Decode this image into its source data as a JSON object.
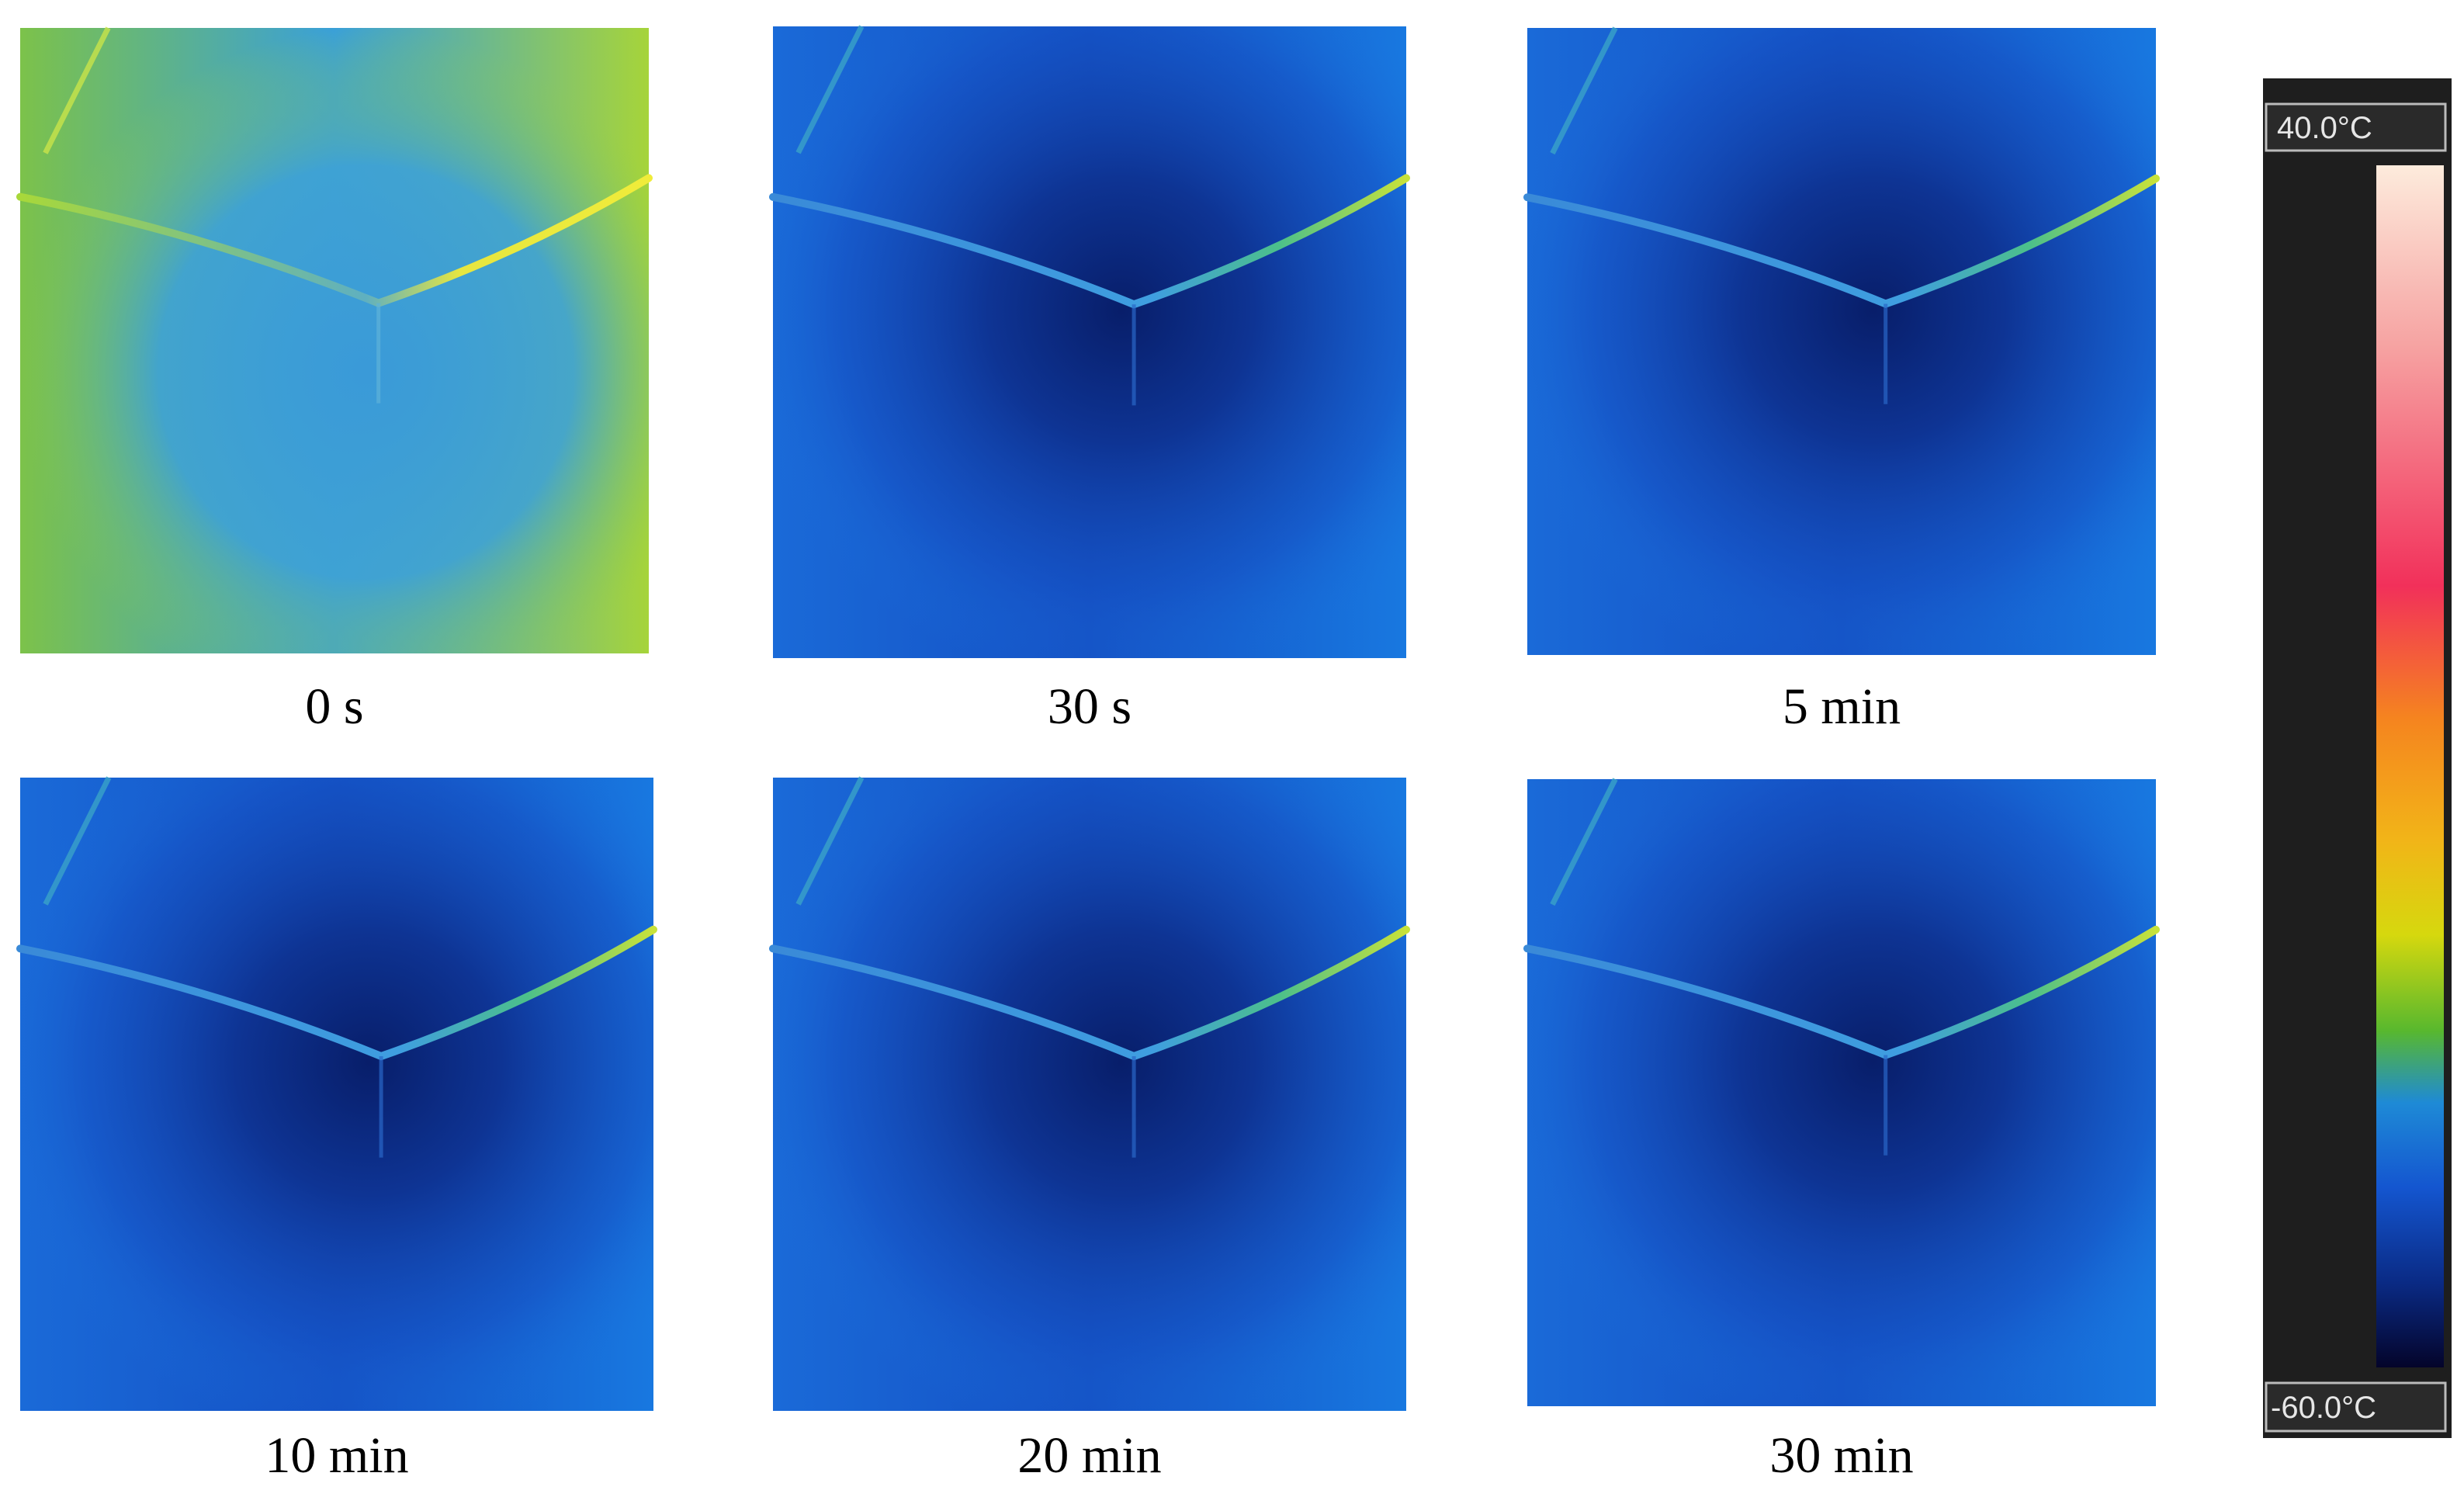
{
  "panels": [
    {
      "label": "0 s"
    },
    {
      "label": "30 s"
    },
    {
      "label": "5 min"
    },
    {
      "label": "10 min"
    },
    {
      "label": "20 min"
    },
    {
      "label": "30 min"
    }
  ],
  "colorbar": {
    "max_label": "40.0°C",
    "min_label": "-60.0°C"
  }
}
